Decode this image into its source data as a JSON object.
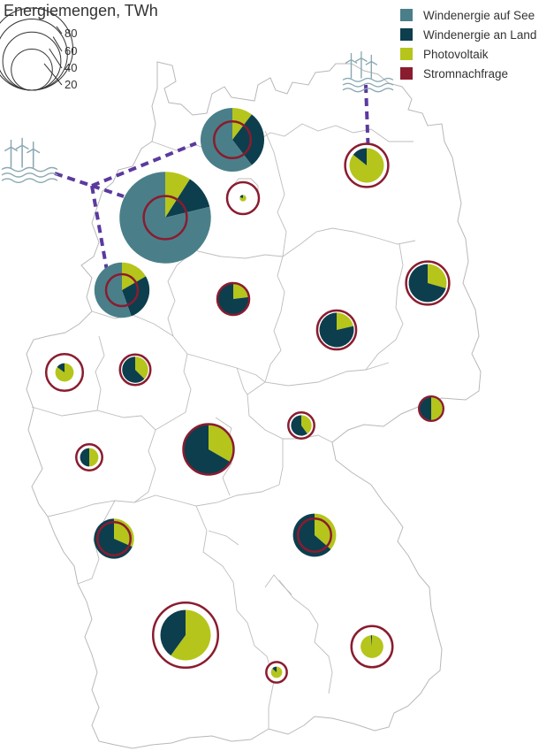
{
  "title": "Energiemengen, TWh",
  "size_legend": {
    "values": [
      80,
      60,
      40,
      20
    ]
  },
  "legend": {
    "items": [
      {
        "label": "Windenergie auf See",
        "color": "#4a7f89"
      },
      {
        "label": "Windenergie an Land",
        "color": "#0c3e4e"
      },
      {
        "label": "Photovoltaik",
        "color": "#b5c51b"
      },
      {
        "label": "Stromnachfrage",
        "color": "#8a1c2f"
      }
    ]
  },
  "icons": [
    "offshore-wind-turbines-icon",
    "offshore-wind-turbines-icon"
  ],
  "chart_data": {
    "type": "pie-map",
    "units": "TWh",
    "series": [
      "Windenergie auf See",
      "Windenergie an Land",
      "Photovoltaik",
      "Stromnachfrage"
    ],
    "regions": [
      {
        "offshore": 29,
        "onshore": 14,
        "pv": 5,
        "demand": 16
      },
      {
        "offshore": 0,
        "onshore": 0.1,
        "pv": 0.4,
        "demand": 12
      },
      {
        "offshore": 78,
        "onshore": 12,
        "pv": 9,
        "demand": 22
      },
      {
        "offshore": 0,
        "onshore": 10,
        "pv": 3,
        "demand": 12
      },
      {
        "offshore": 20,
        "onshore": 10,
        "pv": 6,
        "demand": 12
      },
      {
        "offshore": 0,
        "onshore": 12,
        "pv": 5,
        "demand": 22
      },
      {
        "offshore": 0,
        "onshore": 11,
        "pv": 3,
        "demand": 18
      },
      {
        "offshore": 0,
        "onshore": 20,
        "pv": 10,
        "demand": 30
      },
      {
        "offshore": 0,
        "onshore": 0.6,
        "pv": 3.4,
        "demand": 16
      },
      {
        "offshore": 0,
        "onshore": 5,
        "pv": 3,
        "demand": 11
      },
      {
        "offshore": 0,
        "onshore": 3,
        "pv": 2,
        "demand": 8
      },
      {
        "offshore": 0,
        "onshore": 3,
        "pv": 3,
        "demand": 7
      },
      {
        "offshore": 0,
        "onshore": 2,
        "pv": 2,
        "demand": 8
      },
      {
        "offshore": 0,
        "onshore": 13,
        "pv": 6,
        "demand": 13
      },
      {
        "offshore": 0,
        "onshore": 14,
        "pv": 8,
        "demand": 13
      },
      {
        "offshore": 0,
        "onshore": 2,
        "pv": 12,
        "demand": 22
      },
      {
        "offshore": 0,
        "onshore": 12,
        "pv": 18,
        "demand": 50
      },
      {
        "offshore": 0,
        "onshore": 0.1,
        "pv": 6,
        "demand": 20
      },
      {
        "offshore": 0,
        "onshore": 0.2,
        "pv": 1.3,
        "demand": 5
      }
    ]
  }
}
